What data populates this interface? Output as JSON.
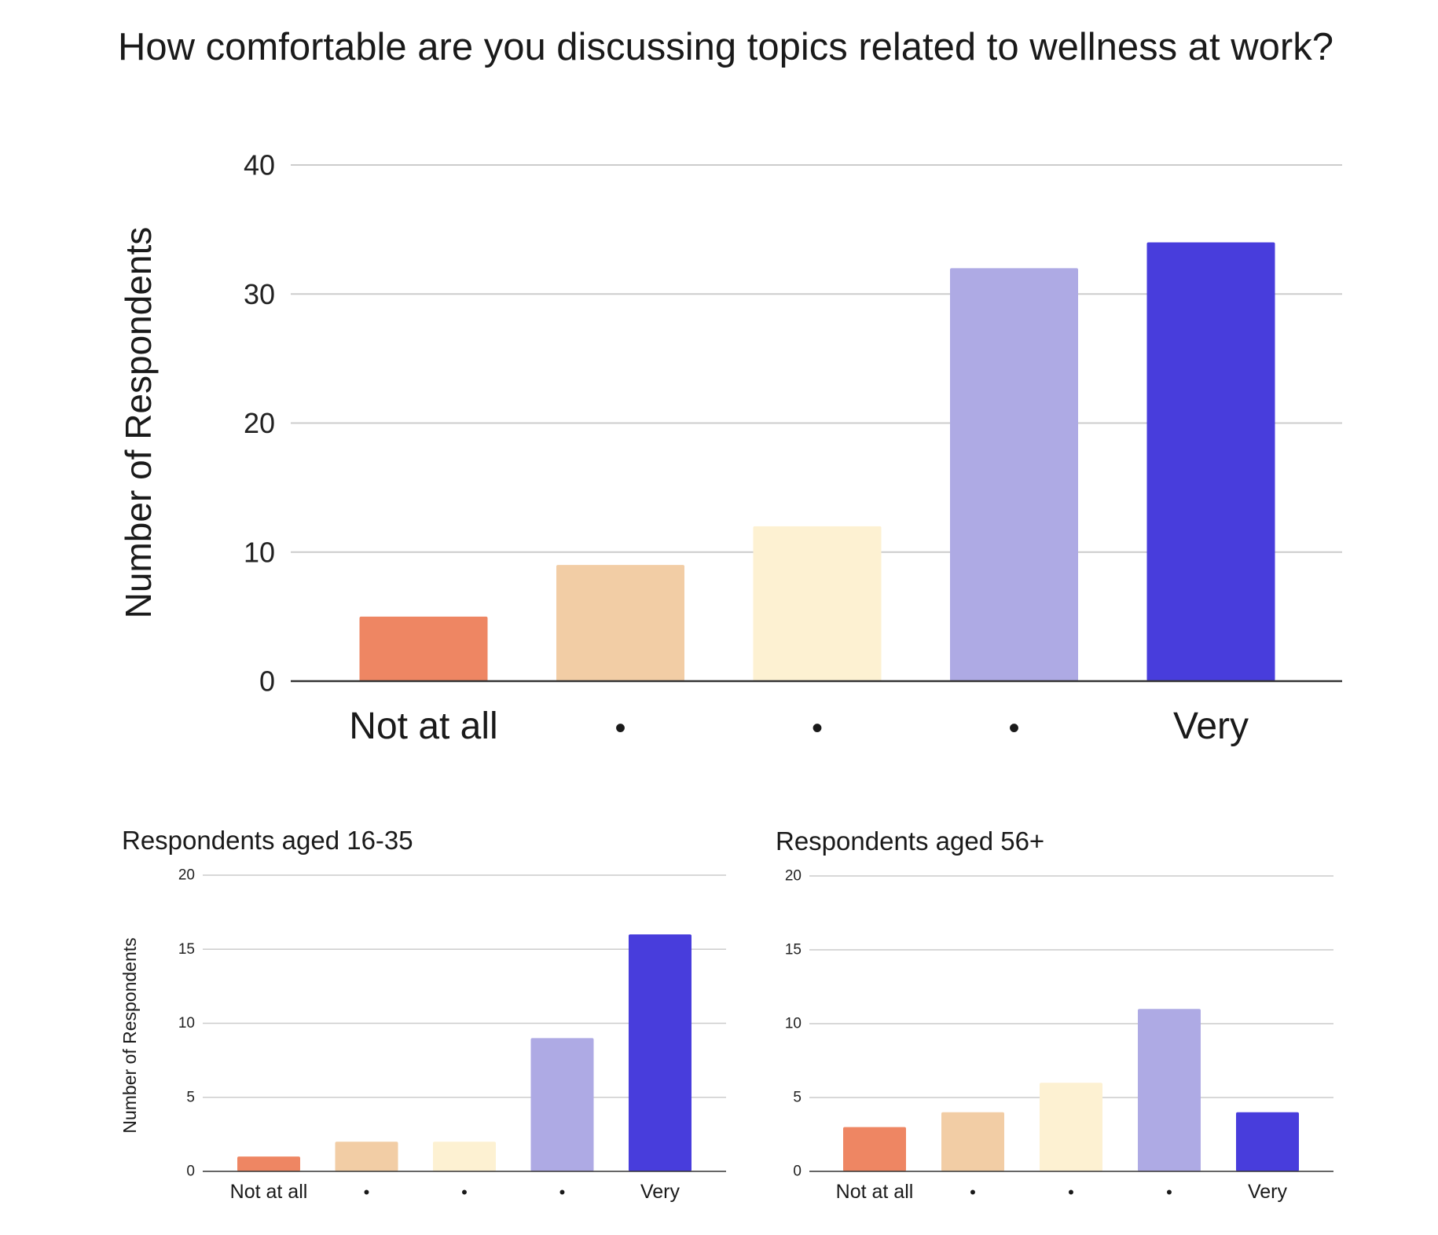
{
  "main": {
    "title": "How comfortable are you discussing topics related to wellness at work?"
  },
  "colors": [
    "#ee8663",
    "#f2cda5",
    "#fdf1d2",
    "#aeaae4",
    "#483ddc"
  ],
  "chart_data": [
    {
      "id": "overall",
      "type": "bar",
      "title": "How comfortable are you discussing topics related to wellness at work?",
      "xlabel": "",
      "ylabel": "Number of Respondents",
      "categories": [
        "Not at all",
        "•",
        "•",
        "•",
        "Very"
      ],
      "values": [
        5,
        9,
        12,
        32,
        34
      ],
      "ylim": [
        0,
        40
      ],
      "yticks": [
        0,
        10,
        20,
        30,
        40
      ],
      "grid": true
    },
    {
      "id": "aged-16-35",
      "type": "bar",
      "title": "Respondents aged 16-35",
      "xlabel": "",
      "ylabel": "Number of Respondents",
      "categories": [
        "Not at all",
        "•",
        "•",
        "•",
        "Very"
      ],
      "values": [
        1,
        2,
        2,
        9,
        16
      ],
      "ylim": [
        0,
        20
      ],
      "yticks": [
        0,
        5,
        10,
        15,
        20
      ],
      "grid": true
    },
    {
      "id": "aged-56-plus",
      "type": "bar",
      "title": "Respondents aged 56+",
      "xlabel": "",
      "ylabel": "",
      "categories": [
        "Not at all",
        "•",
        "•",
        "•",
        "Very"
      ],
      "values": [
        3,
        4,
        6,
        11,
        4
      ],
      "ylim": [
        0,
        20
      ],
      "yticks": [
        0,
        5,
        10,
        15,
        20
      ],
      "grid": true
    }
  ]
}
